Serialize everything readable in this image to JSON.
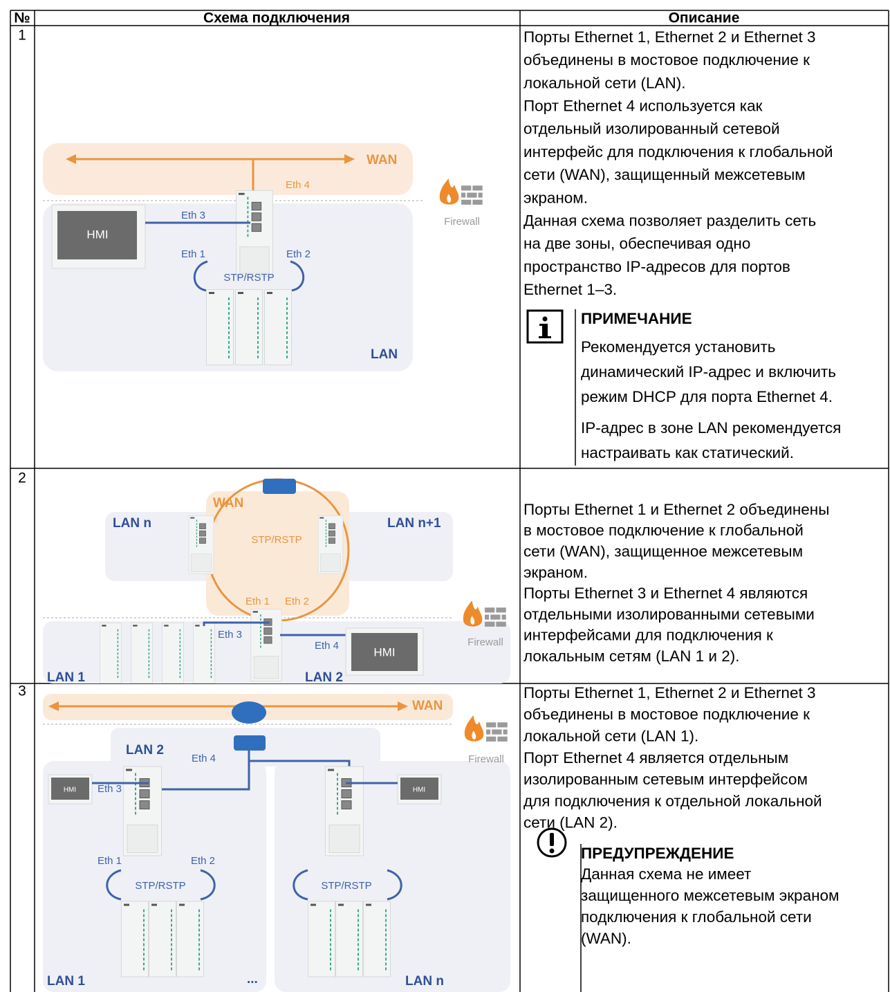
{
  "table": {
    "headers": [
      "№",
      "Схема подключения",
      "Описание"
    ],
    "rows": [
      {
        "number": "1",
        "diagram": {
          "labels": [
            "WAN",
            "Eth 4",
            "Eth 3",
            "HMI",
            "Eth 1",
            "Eth 2",
            "STP/RSTP",
            "LAN",
            "Firewall"
          ]
        },
        "description": {
          "lines": [
            "Порты Ethernet 1, Ethernet 2 и Ethernet 3",
            "объединены в мостовое подключение к",
            "локальной сети (LAN).",
            "Порт Ethernet 4 используется как",
            "отдельный изолированный сетевой",
            "интерфейс для подключения к глобальной",
            "сети (WAN), защищенный межсетевым",
            "экраном.",
            "Данная схема позволяет разделить сеть",
            "на две зоны, обеспечивая одно",
            "пространство IP-адресов для портов",
            "Ethernet 1–3."
          ],
          "note": {
            "title": "ПРИМЕЧАНИЕ",
            "paragraphs": [
              [
                "Рекомендуется установить",
                "динамический IP-адрес и включить",
                "режим DHCP для порта Ethernet 4."
              ],
              [
                "IP-адрес в зоне LAN рекомендуется",
                "настраивать как статический."
              ]
            ]
          }
        }
      },
      {
        "number": "2",
        "diagram": {
          "labels": [
            "WAN",
            "LAN n",
            "LAN n+1",
            "STP/RSTP",
            "Eth 1",
            "Eth 2",
            "Eth 3",
            "Eth 4",
            "HMI",
            "Firewall",
            "LAN 1",
            "LAN 2"
          ]
        },
        "description": {
          "lines": [
            "Порты Ethernet 1 и Ethernet 2 объединены",
            "в мостовое подключение к глобальной",
            "сети (WAN), защищенное межсетевым",
            "экраном.",
            "Порты Ethernet 3 и Ethernet 4 являются",
            "отдельными изолированными сетевыми",
            "интерфейсами для подключения к",
            "локальным сетям (LAN 1 и 2)."
          ]
        }
      },
      {
        "number": "3",
        "diagram": {
          "labels": [
            "WAN",
            "Firewall",
            "LAN 2",
            "Eth 4",
            "Eth 3",
            "HMI",
            "HMI",
            "Eth 1",
            "Eth 2",
            "STP/RSTP",
            "STP/RSTP",
            "LAN 1",
            "...",
            "LAN n"
          ]
        },
        "description": {
          "lines": [
            "Порты Ethernet 1, Ethernet 2 и Ethernet 3",
            "объединены в мостовое подключение к",
            "локальной сети (LAN 1).",
            "Порт Ethernet 4 является отдельным",
            "изолированным сетевым интерфейсом",
            "для подключения к отдельной локальной",
            "сети (LAN 2)."
          ],
          "warning": {
            "title": "ПРЕДУПРЕЖДЕНИЕ",
            "paragraphs": [
              [
                "Данная схема не имеет",
                "защищенного межсетевым экраном",
                "подключения к глобальной сети",
                "(WAN)."
              ]
            ]
          }
        }
      }
    ]
  }
}
